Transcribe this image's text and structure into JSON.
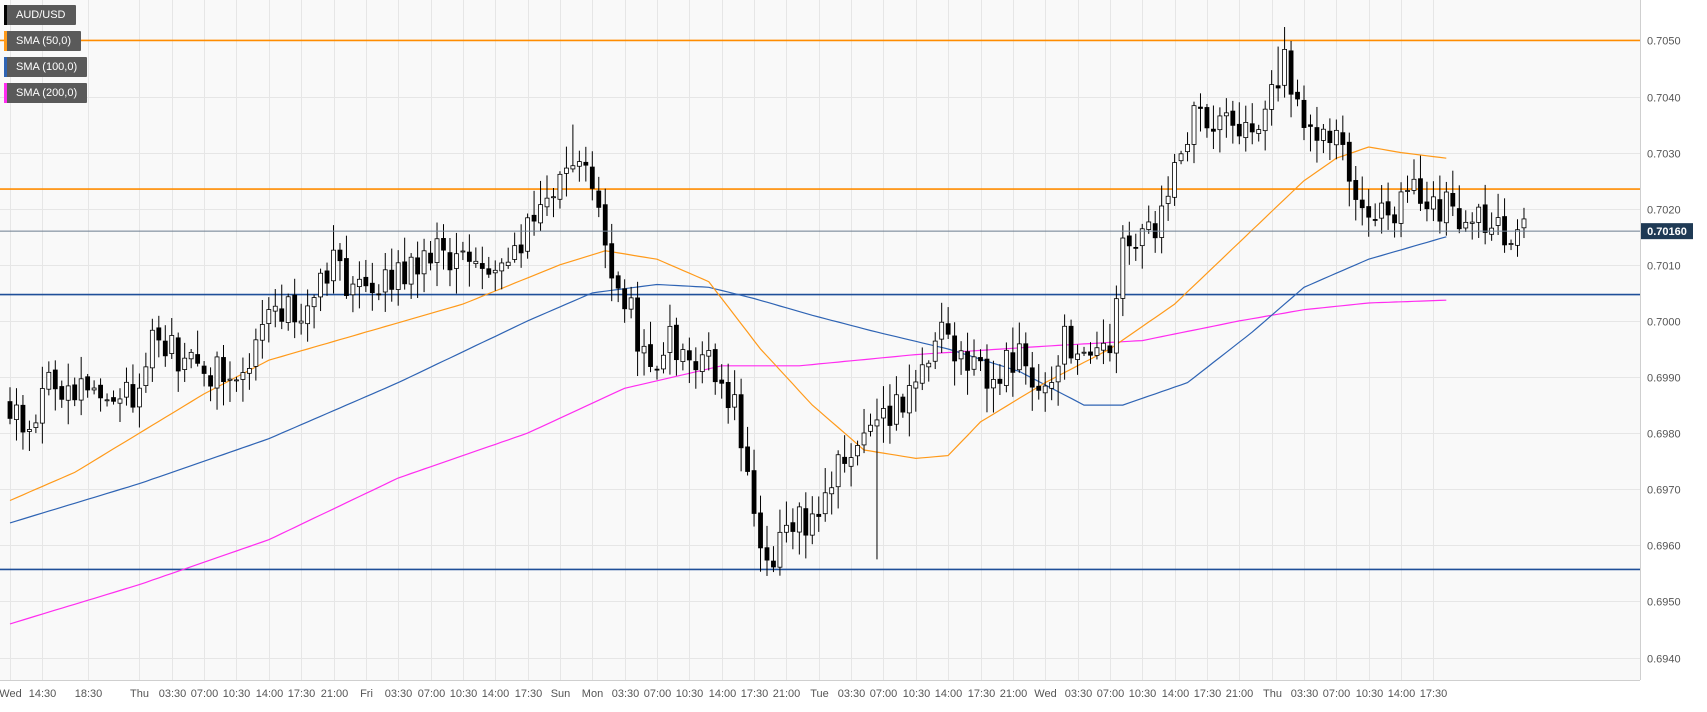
{
  "chart_data": {
    "type": "candlestick",
    "symbol": "AUD/USD",
    "colors": {
      "up_body": "#ffffff",
      "down_body": "#000000",
      "wick": "#000000",
      "grid": "#e6e6e6",
      "background": "#f9f9f9",
      "sma50": "#ff9a1a",
      "sma100": "#2f64b4",
      "sma200": "#ff2df0",
      "resistance": "#ff8c00",
      "support": "#1f4f99",
      "price_line": "#6b7d8f",
      "price_label_bg": "#1f3a55"
    },
    "legend": [
      {
        "label": "AUD/USD",
        "color": "#000000"
      },
      {
        "label": "SMA (50,0)",
        "color": "#ff9a1a"
      },
      {
        "label": "SMA (100,0)",
        "color": "#2f64b4"
      },
      {
        "label": "SMA (200,0)",
        "color": "#ff2df0"
      }
    ],
    "y_axis": {
      "ylim": [
        0.6936,
        0.70572
      ],
      "ticks": [
        "0.6940",
        "0.6950",
        "0.6960",
        "0.6970",
        "0.6980",
        "0.6990",
        "0.7000",
        "0.7010",
        "0.7020",
        "0.7030",
        "0.7040",
        "0.7050"
      ],
      "tick_values": [
        0.694,
        0.695,
        0.696,
        0.697,
        0.698,
        0.699,
        0.7,
        0.701,
        0.702,
        0.703,
        0.704,
        0.705
      ]
    },
    "x_axis": {
      "bars": 235,
      "labels": [
        {
          "bar": 0,
          "text": "Wed"
        },
        {
          "bar": 5,
          "text": "14:30"
        },
        {
          "bar": 12,
          "text": "18:30"
        },
        {
          "bar": 20,
          "text": "Thu"
        },
        {
          "bar": 25,
          "text": "03:30"
        },
        {
          "bar": 30,
          "text": "07:00"
        },
        {
          "bar": 35,
          "text": "10:30"
        },
        {
          "bar": 40,
          "text": "14:00"
        },
        {
          "bar": 45,
          "text": "17:30"
        },
        {
          "bar": 50,
          "text": "21:00"
        },
        {
          "bar": 55,
          "text": "Fri"
        },
        {
          "bar": 60,
          "text": "03:30"
        },
        {
          "bar": 65,
          "text": "07:00"
        },
        {
          "bar": 70,
          "text": "10:30"
        },
        {
          "bar": 75,
          "text": "14:00"
        },
        {
          "bar": 80,
          "text": "17:30"
        },
        {
          "bar": 85,
          "text": "Sun"
        },
        {
          "bar": 90,
          "text": "Mon"
        },
        {
          "bar": 95,
          "text": "03:30"
        },
        {
          "bar": 100,
          "text": "07:00"
        },
        {
          "bar": 105,
          "text": "10:30"
        },
        {
          "bar": 110,
          "text": "14:00"
        },
        {
          "bar": 115,
          "text": "17:30"
        },
        {
          "bar": 120,
          "text": "21:00"
        },
        {
          "bar": 125,
          "text": "Tue"
        },
        {
          "bar": 130,
          "text": "03:30"
        },
        {
          "bar": 135,
          "text": "07:00"
        },
        {
          "bar": 140,
          "text": "10:30"
        },
        {
          "bar": 145,
          "text": "14:00"
        },
        {
          "bar": 150,
          "text": "17:30"
        },
        {
          "bar": 155,
          "text": "21:00"
        },
        {
          "bar": 160,
          "text": "Wed"
        },
        {
          "bar": 165,
          "text": "03:30"
        },
        {
          "bar": 170,
          "text": "07:00"
        },
        {
          "bar": 175,
          "text": "10:30"
        },
        {
          "bar": 180,
          "text": "14:00"
        },
        {
          "bar": 185,
          "text": "17:30"
        },
        {
          "bar": 190,
          "text": "21:00"
        },
        {
          "bar": 195,
          "text": "Thu"
        },
        {
          "bar": 200,
          "text": "03:30"
        },
        {
          "bar": 205,
          "text": "07:00"
        },
        {
          "bar": 210,
          "text": "10:30"
        },
        {
          "bar": 215,
          "text": "14:00"
        },
        {
          "bar": 220,
          "text": "17:30"
        }
      ]
    },
    "horizontal_levels": [
      {
        "value": 0.705,
        "kind": "resistance"
      },
      {
        "value": 0.70235,
        "kind": "resistance"
      },
      {
        "value": 0.70047,
        "kind": "support"
      },
      {
        "value": 0.69557,
        "kind": "support"
      }
    ],
    "last_price": {
      "value": 0.7016,
      "label": "0.70160"
    },
    "close_anchors": [
      [
        0,
        0.6985
      ],
      [
        3,
        0.698
      ],
      [
        6,
        0.6988
      ],
      [
        10,
        0.6989
      ],
      [
        15,
        0.6987
      ],
      [
        19,
        0.6988
      ],
      [
        22,
        0.6997
      ],
      [
        28,
        0.6993
      ],
      [
        35,
        0.6989
      ],
      [
        40,
        0.7
      ],
      [
        45,
        0.7003
      ],
      [
        49,
        0.701
      ],
      [
        55,
        0.7005
      ],
      [
        60,
        0.7008
      ],
      [
        66,
        0.7013
      ],
      [
        71,
        0.7008
      ],
      [
        76,
        0.7013
      ],
      [
        82,
        0.7018
      ],
      [
        85,
        0.7028
      ],
      [
        89,
        0.7026
      ],
      [
        91,
        0.7018
      ],
      [
        93,
        0.7008
      ],
      [
        96,
        0.7003
      ],
      [
        98,
        0.6993
      ],
      [
        102,
        0.6996
      ],
      [
        108,
        0.6994
      ],
      [
        112,
        0.6985
      ],
      [
        115,
        0.6965
      ],
      [
        117,
        0.6958
      ],
      [
        120,
        0.6962
      ],
      [
        124,
        0.6966
      ],
      [
        128,
        0.6975
      ],
      [
        133,
        0.6978
      ],
      [
        137,
        0.6985
      ],
      [
        141,
        0.6993
      ],
      [
        144,
        0.6998
      ],
      [
        148,
        0.6991
      ],
      [
        152,
        0.699
      ],
      [
        156,
        0.6993
      ],
      [
        160,
        0.699
      ],
      [
        163,
        0.6996
      ],
      [
        167,
        0.6996
      ],
      [
        170,
        0.6992
      ],
      [
        172,
        0.7013
      ],
      [
        177,
        0.7015
      ],
      [
        180,
        0.7026
      ],
      [
        183,
        0.7035
      ],
      [
        186,
        0.7037
      ],
      [
        190,
        0.7032
      ],
      [
        194,
        0.7036
      ],
      [
        197,
        0.7045
      ],
      [
        200,
        0.7036
      ],
      [
        205,
        0.7034
      ],
      [
        208,
        0.7025
      ],
      [
        211,
        0.7018
      ],
      [
        214,
        0.702
      ],
      [
        217,
        0.7024
      ],
      [
        220,
        0.7022
      ],
      [
        222,
        0.702
      ],
      [
        234,
        0.7016
      ]
    ],
    "extremes": [
      {
        "bar": 87,
        "type": "high",
        "value": 0.7035
      },
      {
        "bar": 116,
        "type": "low",
        "value": 0.69553
      },
      {
        "bar": 134,
        "type": "low",
        "value": 0.69575
      },
      {
        "bar": 196,
        "type": "high",
        "value": 0.70489
      }
    ],
    "sma50": [
      [
        0,
        0.6968
      ],
      [
        10,
        0.6973
      ],
      [
        20,
        0.698
      ],
      [
        30,
        0.6987
      ],
      [
        40,
        0.6993
      ],
      [
        55,
        0.6998
      ],
      [
        70,
        0.7003
      ],
      [
        85,
        0.701
      ],
      [
        92,
        0.70125
      ],
      [
        100,
        0.7011
      ],
      [
        108,
        0.7007
      ],
      [
        116,
        0.6995
      ],
      [
        124,
        0.6985
      ],
      [
        132,
        0.6977
      ],
      [
        140,
        0.69755
      ],
      [
        145,
        0.6976
      ],
      [
        150,
        0.6982
      ],
      [
        160,
        0.6989
      ],
      [
        170,
        0.6995
      ],
      [
        180,
        0.7003
      ],
      [
        190,
        0.7014
      ],
      [
        200,
        0.7025
      ],
      [
        205,
        0.7029
      ],
      [
        210,
        0.7031
      ],
      [
        215,
        0.703
      ],
      [
        222,
        0.7029
      ]
    ],
    "sma100": [
      [
        0,
        0.6964
      ],
      [
        20,
        0.6971
      ],
      [
        40,
        0.6979
      ],
      [
        60,
        0.6989
      ],
      [
        80,
        0.7
      ],
      [
        90,
        0.7005
      ],
      [
        100,
        0.70065
      ],
      [
        108,
        0.7006
      ],
      [
        115,
        0.7004
      ],
      [
        124,
        0.7001
      ],
      [
        134,
        0.6998
      ],
      [
        145,
        0.6995
      ],
      [
        156,
        0.6991
      ],
      [
        166,
        0.6985
      ],
      [
        172,
        0.6985
      ],
      [
        182,
        0.6989
      ],
      [
        192,
        0.6998
      ],
      [
        200,
        0.7006
      ],
      [
        210,
        0.7011
      ],
      [
        222,
        0.7015
      ]
    ],
    "sma200": [
      [
        0,
        0.6946
      ],
      [
        20,
        0.6953
      ],
      [
        40,
        0.6961
      ],
      [
        60,
        0.6972
      ],
      [
        80,
        0.698
      ],
      [
        95,
        0.6988
      ],
      [
        110,
        0.6992
      ],
      [
        122,
        0.6992
      ],
      [
        140,
        0.6994
      ],
      [
        160,
        0.69955
      ],
      [
        175,
        0.69965
      ],
      [
        190,
        0.7
      ],
      [
        200,
        0.7002
      ],
      [
        210,
        0.70032
      ],
      [
        222,
        0.70037
      ]
    ]
  }
}
